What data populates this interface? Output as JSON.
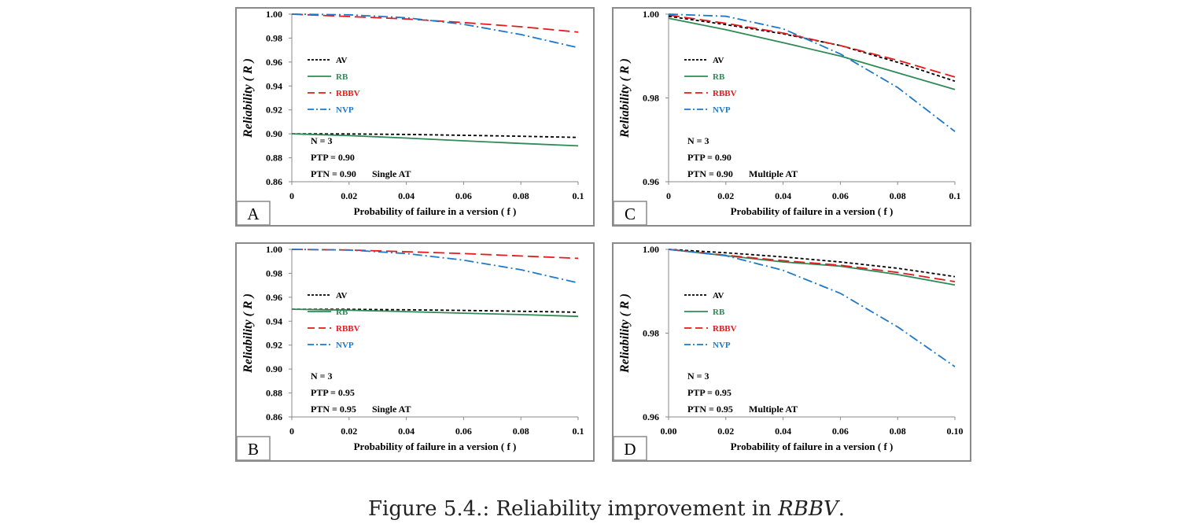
{
  "colors": {
    "AV": "#000000",
    "RB": "#2e8b57",
    "RBBV": "#e41a1c",
    "NVP": "#1f78c8",
    "frame": "#8a8a8a"
  },
  "caption": {
    "prefix": "Figure 5.4.: Reliability improvement in ",
    "emph": "RBBV",
    "suffix": "."
  },
  "chart_data": [
    {
      "type": "line",
      "panel_label": "A",
      "xlabel": "Probability of failure in a version ( f )",
      "ylabel": "Reliability ( R )",
      "xlim": [
        0,
        0.1
      ],
      "ylim": [
        0.86,
        1.0
      ],
      "xticks": [
        "0",
        "0.02",
        "0.04",
        "0.06",
        "0.08",
        "0.1"
      ],
      "yticks": [
        "0.86",
        "0.88",
        "0.90",
        "0.92",
        "0.94",
        "0.96",
        "0.98",
        "1.00"
      ],
      "ytick_values": [
        0.86,
        0.88,
        0.9,
        0.92,
        0.94,
        0.96,
        0.98,
        1.0
      ],
      "x": [
        0,
        0.02,
        0.04,
        0.06,
        0.08,
        0.1
      ],
      "series": [
        {
          "name": "AV",
          "values": [
            0.9,
            0.8999,
            0.8995,
            0.8988,
            0.898,
            0.897
          ]
        },
        {
          "name": "RB",
          "values": [
            0.9,
            0.8985,
            0.8965,
            0.8942,
            0.892,
            0.89
          ]
        },
        {
          "name": "RBBV",
          "values": [
            1.0,
            0.998,
            0.996,
            0.993,
            0.9895,
            0.985
          ]
        },
        {
          "name": "NVP",
          "values": [
            1.0,
            0.9995,
            0.997,
            0.9915,
            0.983,
            0.972
          ]
        }
      ],
      "annotations": {
        "n": "N = 3",
        "ptp": "PTP = 0.90",
        "ptn": "PTN = 0.90",
        "mode": "Single AT"
      },
      "legend": "upper-left"
    },
    {
      "type": "line",
      "panel_label": "C",
      "xlabel": "Probability of failure in a version ( f )",
      "ylabel": "Reliability ( R )",
      "xlim": [
        0,
        0.1
      ],
      "ylim": [
        0.96,
        1.0
      ],
      "xticks": [
        "0",
        "0.02",
        "0.04",
        "0.06",
        "0.08",
        "0.1"
      ],
      "yticks": [
        "0.96",
        "0.98",
        "1.00"
      ],
      "ytick_values": [
        0.96,
        0.98,
        1.0
      ],
      "x": [
        0,
        0.02,
        0.04,
        0.06,
        0.08,
        0.1
      ],
      "series": [
        {
          "name": "AV",
          "values": [
            0.9995,
            0.9975,
            0.9953,
            0.9925,
            0.9885,
            0.984
          ]
        },
        {
          "name": "RB",
          "values": [
            0.999,
            0.9963,
            0.9932,
            0.99,
            0.986,
            0.982
          ]
        },
        {
          "name": "RBBV",
          "values": [
            0.9998,
            0.9978,
            0.9955,
            0.9925,
            0.989,
            0.985
          ]
        },
        {
          "name": "NVP",
          "values": [
            1.0,
            0.9995,
            0.9965,
            0.9905,
            0.9825,
            0.972
          ]
        }
      ],
      "annotations": {
        "n": "N = 3",
        "ptp": "PTP = 0.90",
        "ptn": "PTN = 0.90",
        "mode": "Multiple AT"
      },
      "legend": "upper-left"
    },
    {
      "type": "line",
      "panel_label": "B",
      "xlabel": "Probability of failure in a version ( f )",
      "ylabel": "Reliability ( R )",
      "xlim": [
        0,
        0.1
      ],
      "ylim": [
        0.86,
        1.0
      ],
      "xticks": [
        "0",
        "0.02",
        "0.04",
        "0.06",
        "0.08",
        "0.1"
      ],
      "yticks": [
        "0.86",
        "0.88",
        "0.90",
        "0.92",
        "0.94",
        "0.96",
        "0.98",
        "1.00"
      ],
      "ytick_values": [
        0.86,
        0.88,
        0.9,
        0.92,
        0.94,
        0.96,
        0.98,
        1.0
      ],
      "x": [
        0,
        0.02,
        0.04,
        0.06,
        0.08,
        0.1
      ],
      "series": [
        {
          "name": "AV",
          "values": [
            0.95,
            0.9499,
            0.9495,
            0.949,
            0.9483,
            0.9475
          ]
        },
        {
          "name": "RB",
          "values": [
            0.95,
            0.9492,
            0.948,
            0.9467,
            0.9455,
            0.944
          ]
        },
        {
          "name": "RBBV",
          "values": [
            1.0,
            0.9995,
            0.998,
            0.9965,
            0.9945,
            0.9925
          ]
        },
        {
          "name": "NVP",
          "values": [
            1.0,
            0.9995,
            0.9965,
            0.991,
            0.983,
            0.972
          ]
        }
      ],
      "annotations": {
        "n": "N = 3",
        "ptp": "PTP = 0.95",
        "ptn": "PTN = 0.95",
        "mode": "Single AT"
      },
      "legend": "upper-left"
    },
    {
      "type": "line",
      "panel_label": "D",
      "xlabel": "Probability of failure in a version ( f )",
      "ylabel": "Reliability ( R )",
      "xlim": [
        0,
        0.1
      ],
      "ylim": [
        0.96,
        1.0
      ],
      "xticks": [
        "0.00",
        "0.02",
        "0.04",
        "0.06",
        "0.08",
        "0.10"
      ],
      "yticks": [
        "0.96",
        "0.98",
        "1.00"
      ],
      "ytick_values": [
        0.96,
        0.98,
        1.0
      ],
      "x": [
        0,
        0.02,
        0.04,
        0.06,
        0.08,
        0.1
      ],
      "series": [
        {
          "name": "AV",
          "values": [
            1.0,
            0.9992,
            0.9982,
            0.997,
            0.9955,
            0.9935
          ]
        },
        {
          "name": "RB",
          "values": [
            1.0,
            0.9985,
            0.997,
            0.996,
            0.994,
            0.9915
          ]
        },
        {
          "name": "RBBV",
          "values": [
            1.0,
            0.9986,
            0.9973,
            0.9962,
            0.9945,
            0.9923
          ]
        },
        {
          "name": "NVP",
          "values": [
            1.0,
            0.9985,
            0.995,
            0.9895,
            0.9815,
            0.972
          ]
        }
      ],
      "annotations": {
        "n": "N = 3",
        "ptp": "PTP = 0.95",
        "ptn": "PTN = 0.95",
        "mode": "Multiple AT"
      },
      "legend": "upper-left"
    }
  ]
}
